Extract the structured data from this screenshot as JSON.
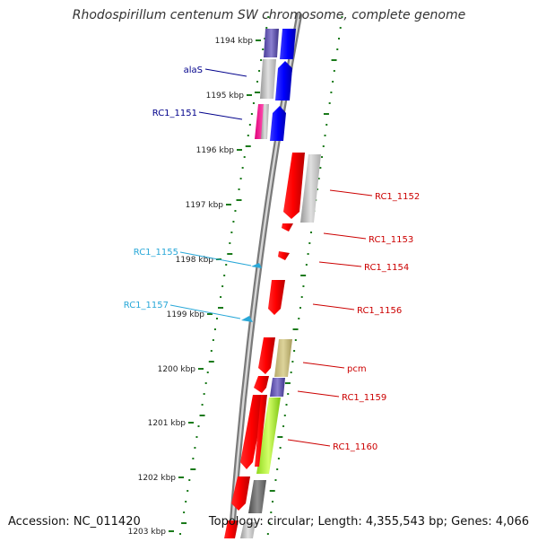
{
  "title": "Rhodospirillum centenum SW chromosome, complete genome",
  "footer": {
    "accession": "Accession: NC_011420",
    "summary": "Topology: circular; Length: 4,355,543 bp; Genes: 4,066"
  },
  "scale": {
    "labels": [
      "1194 kbp",
      "1195 kbp",
      "1196 kbp",
      "1197 kbp",
      "1198 kbp",
      "1199 kbp",
      "1200 kbp",
      "1201 kbp",
      "1202 kbp",
      "1203 kbp"
    ]
  },
  "genes_left": [
    {
      "name": "alaS",
      "color": "#00008b"
    },
    {
      "name": "RC1_1151",
      "color": "#00008b"
    },
    {
      "name": "RC1_1155",
      "color": "#29a8d8"
    },
    {
      "name": "RC1_1157",
      "color": "#29a8d8"
    }
  ],
  "genes_right": [
    {
      "name": "RC1_1152",
      "color": "#cc0000"
    },
    {
      "name": "RC1_1153",
      "color": "#cc0000"
    },
    {
      "name": "RC1_1154",
      "color": "#cc0000"
    },
    {
      "name": "RC1_1156",
      "color": "#cc0000"
    },
    {
      "name": "pcm",
      "color": "#cc0000"
    },
    {
      "name": "RC1_1159",
      "color": "#cc0000"
    },
    {
      "name": "RC1_1160",
      "color": "#cc0000"
    }
  ],
  "colors": {
    "forward_gene": "#ff0000",
    "reverse_gene": "#0000ff",
    "backbone": "#888888",
    "ticks": "#1a7a1a"
  }
}
